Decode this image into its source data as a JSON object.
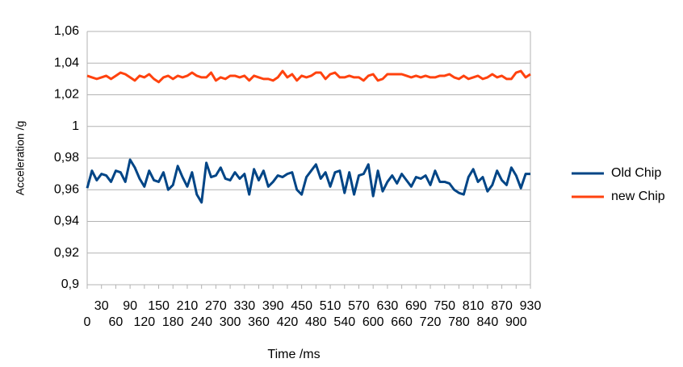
{
  "chart_data": {
    "type": "line",
    "x_label": "Time /ms",
    "y_label": "Acceleration /g",
    "x": [
      0,
      10,
      20,
      30,
      40,
      50,
      60,
      70,
      80,
      90,
      100,
      110,
      120,
      130,
      140,
      150,
      160,
      170,
      180,
      190,
      200,
      210,
      220,
      230,
      240,
      250,
      260,
      270,
      280,
      290,
      300,
      310,
      320,
      330,
      340,
      350,
      360,
      370,
      380,
      390,
      400,
      410,
      420,
      430,
      440,
      450,
      460,
      470,
      480,
      490,
      500,
      510,
      520,
      530,
      540,
      550,
      560,
      570,
      580,
      590,
      600,
      610,
      620,
      630,
      640,
      650,
      660,
      670,
      680,
      690,
      700,
      710,
      720,
      730,
      740,
      750,
      760,
      770,
      780,
      790,
      800,
      810,
      820,
      830,
      840,
      850,
      860,
      870,
      880,
      890,
      900,
      910,
      920,
      930
    ],
    "xlim": [
      0,
      930
    ],
    "xticks": [
      0,
      30,
      60,
      90,
      120,
      150,
      180,
      210,
      240,
      270,
      300,
      330,
      360,
      390,
      420,
      450,
      480,
      510,
      540,
      570,
      600,
      630,
      660,
      690,
      720,
      750,
      780,
      810,
      840,
      870,
      900,
      930
    ],
    "ylim": [
      0.9,
      1.06
    ],
    "yticks": [
      {
        "value": 0.9,
        "label": "0,9"
      },
      {
        "value": 0.92,
        "label": "0,92"
      },
      {
        "value": 0.94,
        "label": "0,94"
      },
      {
        "value": 0.96,
        "label": "0,96"
      },
      {
        "value": 0.98,
        "label": "0,98"
      },
      1,
      {
        "value": 1.02,
        "label": "1,02"
      },
      {
        "value": 1.04,
        "label": "1,04"
      },
      {
        "value": 1.06,
        "label": "1,06"
      }
    ],
    "grid": true,
    "legend": "right",
    "series": [
      {
        "name": "Old Chip",
        "color": "#004586",
        "values": [
          0.961,
          0.972,
          0.966,
          0.97,
          0.969,
          0.965,
          0.972,
          0.971,
          0.965,
          0.979,
          0.974,
          0.967,
          0.962,
          0.972,
          0.966,
          0.965,
          0.971,
          0.96,
          0.963,
          0.975,
          0.968,
          0.962,
          0.971,
          0.957,
          0.952,
          0.977,
          0.968,
          0.969,
          0.974,
          0.967,
          0.966,
          0.971,
          0.967,
          0.97,
          0.957,
          0.973,
          0.966,
          0.972,
          0.962,
          0.965,
          0.969,
          0.968,
          0.97,
          0.971,
          0.96,
          0.957,
          0.968,
          0.972,
          0.976,
          0.967,
          0.971,
          0.962,
          0.971,
          0.972,
          0.958,
          0.971,
          0.957,
          0.969,
          0.97,
          0.976,
          0.956,
          0.972,
          0.959,
          0.965,
          0.969,
          0.964,
          0.97,
          0.966,
          0.962,
          0.968,
          0.967,
          0.969,
          0.963,
          0.972,
          0.965,
          0.965,
          0.964,
          0.96,
          0.958,
          0.957,
          0.968,
          0.973,
          0.965,
          0.968,
          0.959,
          0.963,
          0.972,
          0.966,
          0.963,
          0.974,
          0.969,
          0.961,
          0.97,
          0.97
        ]
      },
      {
        "name": "new Chip",
        "color": "#ff420e",
        "values": [
          1.032,
          1.031,
          1.03,
          1.031,
          1.032,
          1.03,
          1.032,
          1.034,
          1.033,
          1.031,
          1.029,
          1.032,
          1.031,
          1.033,
          1.03,
          1.028,
          1.031,
          1.032,
          1.03,
          1.032,
          1.031,
          1.032,
          1.034,
          1.032,
          1.031,
          1.031,
          1.034,
          1.029,
          1.031,
          1.03,
          1.032,
          1.032,
          1.031,
          1.032,
          1.029,
          1.032,
          1.031,
          1.03,
          1.03,
          1.029,
          1.031,
          1.035,
          1.031,
          1.033,
          1.029,
          1.032,
          1.031,
          1.032,
          1.034,
          1.034,
          1.03,
          1.033,
          1.034,
          1.031,
          1.031,
          1.032,
          1.031,
          1.031,
          1.029,
          1.032,
          1.033,
          1.029,
          1.03,
          1.033,
          1.033,
          1.033,
          1.033,
          1.032,
          1.031,
          1.032,
          1.031,
          1.032,
          1.031,
          1.031,
          1.032,
          1.032,
          1.033,
          1.031,
          1.03,
          1.032,
          1.03,
          1.031,
          1.032,
          1.03,
          1.031,
          1.033,
          1.031,
          1.032,
          1.03,
          1.03,
          1.034,
          1.035,
          1.031,
          1.033
        ]
      }
    ]
  }
}
